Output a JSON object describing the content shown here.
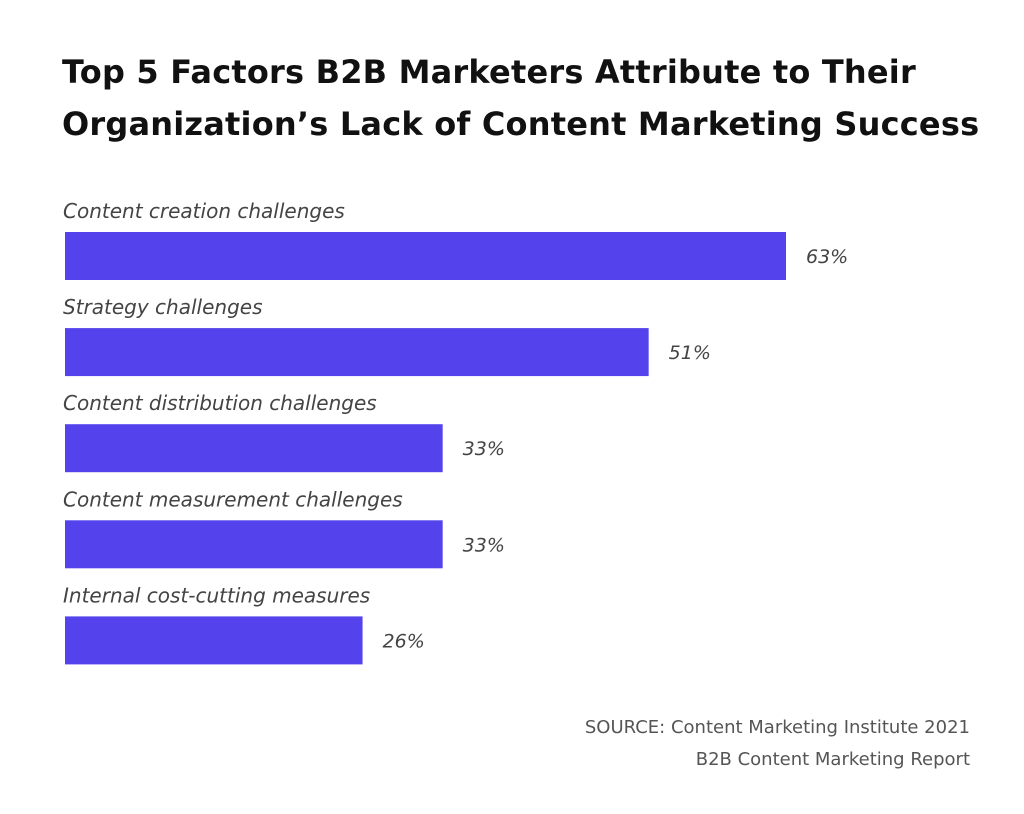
{
  "chart_data": {
    "type": "bar",
    "orientation": "horizontal",
    "title": [
      "Top 5 Factors B2B Marketers Attribute to Their",
      "Organization’s Lack of Content Marketing Success"
    ],
    "categories": [
      "Content creation challenges",
      "Strategy challenges",
      "Content distribution challenges",
      "Content measurement challenges",
      "Internal cost-cutting measures"
    ],
    "values": [
      63,
      51,
      33,
      33,
      26
    ],
    "value_labels": [
      "63%",
      "51%",
      "33%",
      "33%",
      "26%"
    ],
    "unit": "%",
    "xlim": [
      0,
      100
    ],
    "grid": false,
    "bar_color": "#5443EC",
    "source": [
      "SOURCE: Content Marketing Institute 2021",
      "B2B Content Marketing Report"
    ]
  }
}
